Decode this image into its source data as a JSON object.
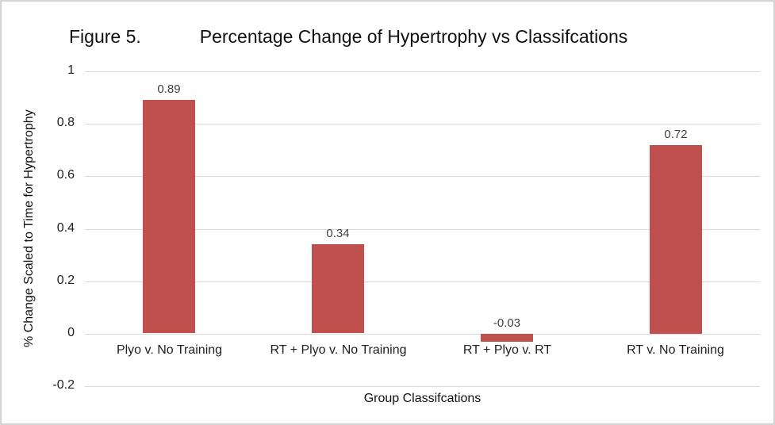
{
  "chart_data": {
    "type": "bar",
    "figure_label": "Figure 5.",
    "title": "Percentage Change of Hypertrophy vs Classifcations",
    "xlabel": "Group Classifcations",
    "ylabel": "% Change Scaled to Time for Hypertrophy",
    "categories": [
      "Plyo v. No Training",
      "RT + Plyo v. No Training",
      "RT + Plyo v. RT",
      "RT v. No Training"
    ],
    "values": [
      0.89,
      0.34,
      -0.03,
      0.72
    ],
    "value_labels": [
      "0.89",
      "0.34",
      "-0.03",
      "0.72"
    ],
    "ylim": [
      -0.2,
      1
    ],
    "yticks": [
      1,
      0.8,
      0.6,
      0.4,
      0.2,
      0,
      -0.2
    ],
    "ytick_labels": [
      "1",
      "0.8",
      "0.6",
      "0.4",
      "0.2",
      "0",
      "-0.2"
    ],
    "grid": true,
    "legend": "none",
    "bar_color": "#c0504d",
    "gridline_color": "#d9d9d9",
    "background_color": "#ffffff"
  }
}
